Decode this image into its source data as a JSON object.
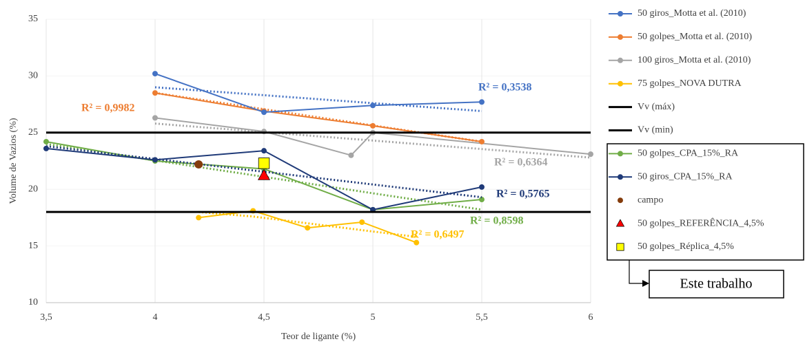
{
  "chart_data": {
    "type": "line",
    "x_label": "Teor de ligante (%)",
    "y_label": "Volume de Vazios (%)",
    "xlim": [
      3.5,
      6
    ],
    "ylim": [
      10,
      35
    ],
    "xticks": [
      {
        "value": 3.5,
        "label": "3,5"
      },
      4,
      {
        "value": 4.5,
        "label": "4,5"
      },
      5,
      {
        "value": 5.5,
        "label": "5,5"
      },
      6
    ],
    "yticks": [
      10,
      15,
      20,
      25,
      30,
      35
    ],
    "grid": true,
    "series": [
      {
        "name": "50 giros_Motta et al. (2010)",
        "color": "#4472c4",
        "marker": "circle",
        "x": [
          4,
          4.5,
          5,
          5.5
        ],
        "values": [
          30.2,
          26.8,
          27.4,
          27.7
        ],
        "trendline": {
          "x": [
            4,
            5.5
          ],
          "values": [
            29.0,
            26.9
          ]
        },
        "r2_label": "R² = 0,3538"
      },
      {
        "name": "50 golpes_Motta et al. (2010)",
        "color": "#ed7d31",
        "marker": "circle",
        "x": [
          4,
          4.5,
          5,
          5.5
        ],
        "values": [
          28.5,
          26.9,
          25.6,
          24.2
        ],
        "trendline": {
          "x": [
            4,
            5.5
          ],
          "values": [
            28.5,
            24.2
          ]
        },
        "r2_label": "R² = 0,9982"
      },
      {
        "name": "100 giros_Motta et al. (2010)",
        "color": "#a5a5a5",
        "marker": "circle",
        "x": [
          4,
          4.5,
          4.9,
          5,
          6
        ],
        "values": [
          26.3,
          25.1,
          23.0,
          25.0,
          23.1
        ],
        "trendline": {
          "x": [
            4,
            6
          ],
          "values": [
            25.8,
            22.8
          ]
        },
        "r2_label": "R² = 0,6364"
      },
      {
        "name": "75 golpes_NOVA DUTRA",
        "color": "#ffc000",
        "marker": "circle",
        "x": [
          4.2,
          4.45,
          4.7,
          4.95,
          5.2
        ],
        "values": [
          17.5,
          18.1,
          16.6,
          17.1,
          15.3
        ],
        "trendline": {
          "x": [
            4.2,
            4.45,
            4.7,
            4.95,
            5.2
          ],
          "values": [
            18.0,
            17.6,
            17.0,
            16.4,
            15.8
          ]
        },
        "r2_label": "R² = 0,6497"
      },
      {
        "name": "Vv (máx)",
        "color": "#000000",
        "marker": "none",
        "x": [
          3.5,
          6
        ],
        "values": [
          25,
          25
        ]
      },
      {
        "name": "Vv (min)",
        "color": "#000000",
        "marker": "none",
        "x": [
          3.5,
          6
        ],
        "values": [
          18,
          18
        ]
      },
      {
        "name": "50 golpes_CPA_15%_RA",
        "color": "#70ad47",
        "marker": "circle",
        "x": [
          3.5,
          4,
          4.5,
          5,
          5.5
        ],
        "values": [
          24.2,
          22.5,
          21.8,
          18.2,
          19.1
        ],
        "trendline": {
          "x": [
            3.5,
            5.5
          ],
          "values": [
            24.0,
            18.2
          ]
        },
        "r2_label": "R² = 0,8598"
      },
      {
        "name": "50 giros_CPA_15%_RA",
        "color": "#1f3a78",
        "marker": "circle",
        "x": [
          3.5,
          4,
          4.5,
          5,
          5.5
        ],
        "values": [
          23.6,
          22.6,
          23.4,
          18.2,
          20.2
        ],
        "trendline": {
          "x": [
            3.5,
            5.5
          ],
          "values": [
            23.8,
            19.3
          ]
        },
        "r2_label": "R² = 0,5765"
      },
      {
        "name": "campo",
        "color": "#843c0c",
        "marker": "circle",
        "x": [
          4.2
        ],
        "values": [
          22.2
        ]
      },
      {
        "name": "50 golpes_REFERÊNCIA_4,5%",
        "color": "#ff0000",
        "marker": "triangle",
        "x": [
          4.5
        ],
        "values": [
          21.2
        ]
      },
      {
        "name": "50 golpes_Réplica_4,5%",
        "color": "#ffff00",
        "marker": "square",
        "x": [
          4.5
        ],
        "values": [
          22.3
        ]
      }
    ],
    "group_label": "Este trabalho"
  }
}
